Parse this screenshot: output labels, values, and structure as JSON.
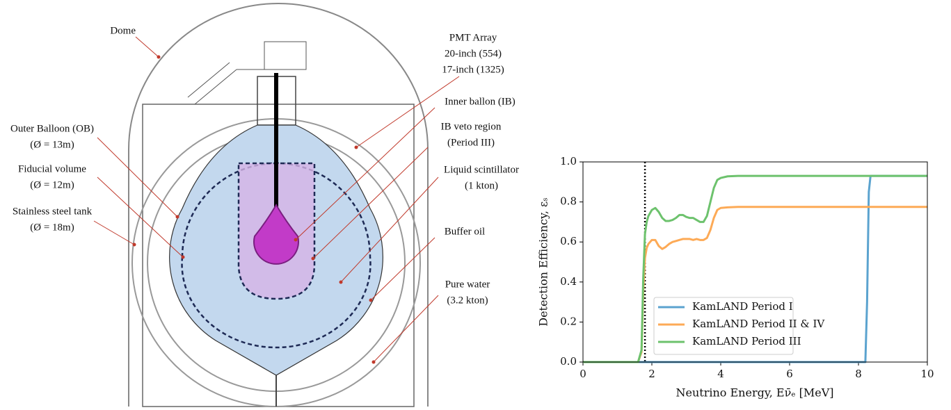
{
  "diagram": {
    "labels": [
      {
        "lines": [
          "Dome"
        ]
      },
      {
        "lines": [
          "PMT Array",
          "20-inch (554)",
          "17-inch (1325)"
        ]
      },
      {
        "lines": [
          "Inner ballon (IB)"
        ]
      },
      {
        "lines": [
          "IB veto region",
          "(Period III)"
        ]
      },
      {
        "lines": [
          "Outer Balloon (OB)",
          "(Ø = 13m)"
        ]
      },
      {
        "lines": [
          "Fiducial volume",
          "(Ø = 12m)"
        ]
      },
      {
        "lines": [
          "Liquid scintillator",
          "(1 kton)"
        ]
      },
      {
        "lines": [
          "Stainless steel tank",
          "(Ø = 18m)"
        ]
      },
      {
        "lines": [
          "Buffer oil"
        ]
      },
      {
        "lines": [
          "Pure water",
          "(3.2 kton)"
        ]
      }
    ]
  },
  "chart_data": {
    "type": "line",
    "x_label": "Neutrino Energy, Eν̄ₑ [MeV]",
    "y_label": "Detection Efficiency, εₛ",
    "x": [
      0,
      1.6,
      1.7,
      1.75,
      1.8,
      1.85,
      1.9,
      2.0,
      2.1,
      2.2,
      2.3,
      2.4,
      2.5,
      2.6,
      2.7,
      2.8,
      2.9,
      3.0,
      3.1,
      3.2,
      3.3,
      3.4,
      3.5,
      3.6,
      3.7,
      3.8,
      3.9,
      4.0,
      4.2,
      4.5,
      5,
      6,
      7,
      8,
      8.2,
      8.25,
      8.3,
      8.35,
      8.4,
      9,
      10
    ],
    "series": [
      {
        "name": "KamLAND Period I",
        "color": "#5ba3cf",
        "values": [
          0,
          0,
          0,
          0,
          0,
          0,
          0,
          0,
          0,
          0,
          0,
          0,
          0,
          0,
          0,
          0,
          0,
          0,
          0,
          0,
          0,
          0,
          0,
          0,
          0,
          0,
          0,
          0,
          0,
          0,
          0,
          0,
          0,
          0,
          0,
          0.3,
          0.85,
          0.93,
          0.93,
          0.93,
          0.93
        ]
      },
      {
        "name": "KamLAND Period II & IV",
        "color": "#fdaa56",
        "values": [
          0,
          0,
          0.05,
          0.35,
          0.52,
          0.57,
          0.59,
          0.61,
          0.61,
          0.58,
          0.565,
          0.575,
          0.59,
          0.6,
          0.605,
          0.61,
          0.615,
          0.615,
          0.615,
          0.61,
          0.615,
          0.61,
          0.61,
          0.62,
          0.66,
          0.72,
          0.76,
          0.77,
          0.773,
          0.775,
          0.775,
          0.775,
          0.775,
          0.775,
          0.775,
          0.775,
          0.775,
          0.775,
          0.775,
          0.775,
          0.775
        ]
      },
      {
        "name": "KamLAND Period III",
        "color": "#6dc26d",
        "values": [
          0,
          0,
          0.06,
          0.42,
          0.64,
          0.7,
          0.73,
          0.76,
          0.77,
          0.75,
          0.72,
          0.705,
          0.705,
          0.71,
          0.72,
          0.735,
          0.735,
          0.725,
          0.72,
          0.72,
          0.71,
          0.7,
          0.7,
          0.73,
          0.8,
          0.87,
          0.91,
          0.92,
          0.928,
          0.93,
          0.93,
          0.93,
          0.93,
          0.93,
          0.93,
          0.93,
          0.93,
          0.93,
          0.93,
          0.93,
          0.93
        ]
      }
    ],
    "vline_x": 1.8,
    "xlim": [
      0,
      10
    ],
    "xticks": [
      0,
      2,
      4,
      6,
      8,
      10
    ],
    "ylim": [
      0,
      1
    ],
    "yticks": [
      {
        "value": 0,
        "label": "0.0"
      },
      {
        "value": 0.2,
        "label": "0.2"
      },
      {
        "value": 0.4,
        "label": "0.4"
      },
      {
        "value": 0.6,
        "label": "0.6"
      },
      {
        "value": 0.8,
        "label": "0.8"
      },
      {
        "value": 1,
        "label": "1.0"
      }
    ],
    "legend": "lower right",
    "grid": false
  }
}
